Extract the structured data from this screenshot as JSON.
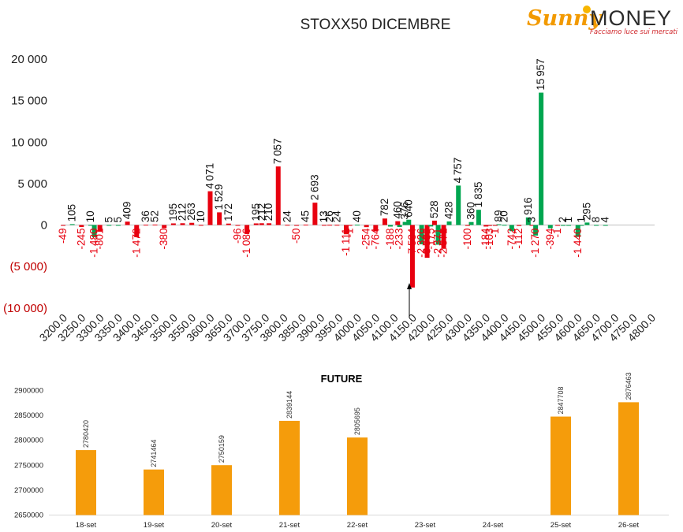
{
  "logo": {
    "sunny": "Sunny",
    "money": "MONEY",
    "tagline": "Facciamo luce sui mercati"
  },
  "chart_data": [
    {
      "type": "bar",
      "title": "STOXX50 DICEMBRE",
      "ylim": [
        -10000,
        20000
      ],
      "yticks": [
        20000,
        15000,
        10000,
        5000,
        0,
        -5000,
        -10000
      ],
      "ytick_labels": [
        "20 000",
        "15 000",
        "10 000",
        "5 000",
        "0",
        "(5 000)",
        "(10 000)"
      ],
      "categories": [
        "3200.0",
        "3250.0",
        "3300.0",
        "3350.0",
        "3400.0",
        "3450.0",
        "3500.0",
        "3550.0",
        "3600.0",
        "3650.0",
        "3700.0",
        "3750.0",
        "3800.0",
        "3850.0",
        "3900.0",
        "3950.0",
        "4000.0",
        "4050.0",
        "4100.0",
        "4150.0",
        "4200.0",
        "4250.0",
        "4300.0",
        "4350.0",
        "4400.0",
        "4450.0",
        "4500.0",
        "4550.0",
        "4600.0",
        "4650.0",
        "4700.0",
        "4750.0",
        "4800.0"
      ],
      "marker_label": "4150.0",
      "bars": [
        {
          "x": 3200,
          "v": -49,
          "c": "red"
        },
        {
          "x": 3225,
          "v": 105,
          "c": "green"
        },
        {
          "x": 3250,
          "v": -245,
          "c": "red"
        },
        {
          "x": 3275,
          "v": 10,
          "c": "green"
        },
        {
          "x": 3285,
          "v": -1480,
          "c": "green"
        },
        {
          "x": 3300,
          "v": -801,
          "c": "red"
        },
        {
          "x": 3325,
          "v": 5,
          "c": "green"
        },
        {
          "x": 3350,
          "v": 5,
          "c": "green"
        },
        {
          "x": 3375,
          "v": 409,
          "c": "red"
        },
        {
          "x": 3400,
          "v": -1472,
          "c": "red"
        },
        {
          "x": 3425,
          "v": 36,
          "c": "red"
        },
        {
          "x": 3450,
          "v": 52,
          "c": "red"
        },
        {
          "x": 3475,
          "v": -380,
          "c": "red"
        },
        {
          "x": 3500,
          "v": 195,
          "c": "red"
        },
        {
          "x": 3525,
          "v": 212,
          "c": "red"
        },
        {
          "x": 3550,
          "v": 263,
          "c": "red"
        },
        {
          "x": 3575,
          "v": 10,
          "c": "red"
        },
        {
          "x": 3600,
          "v": 4071,
          "c": "red"
        },
        {
          "x": 3625,
          "v": 1529,
          "c": "red"
        },
        {
          "x": 3650,
          "v": 172,
          "c": "red"
        },
        {
          "x": 3675,
          "v": -96,
          "c": "red"
        },
        {
          "x": 3700,
          "v": -1086,
          "c": "red"
        },
        {
          "x": 3725,
          "v": 195,
          "c": "red"
        },
        {
          "x": 3740,
          "v": 212,
          "c": "red"
        },
        {
          "x": 3760,
          "v": 210,
          "c": "red"
        },
        {
          "x": 3785,
          "v": 7057,
          "c": "red"
        },
        {
          "x": 3810,
          "v": 24,
          "c": "red"
        },
        {
          "x": 3835,
          "v": -50,
          "c": "red"
        },
        {
          "x": 3860,
          "v": 45,
          "c": "red"
        },
        {
          "x": 3885,
          "v": 2693,
          "c": "red"
        },
        {
          "x": 3910,
          "v": 13,
          "c": "red"
        },
        {
          "x": 3925,
          "v": 26,
          "c": "red"
        },
        {
          "x": 3945,
          "v": 24,
          "c": "red"
        },
        {
          "x": 3970,
          "v": -1111,
          "c": "red"
        },
        {
          "x": 3980,
          "v": -1,
          "c": "red"
        },
        {
          "x": 4000,
          "v": 40,
          "c": "green"
        },
        {
          "x": 4025,
          "v": -254,
          "c": "red"
        },
        {
          "x": 4050,
          "v": -764,
          "c": "red"
        },
        {
          "x": 4075,
          "v": 782,
          "c": "red"
        },
        {
          "x": 4090,
          "v": -188,
          "c": "green"
        },
        {
          "x": 4110,
          "v": 460,
          "c": "red"
        },
        {
          "x": 4115,
          "v": -233,
          "c": "green"
        },
        {
          "x": 4130,
          "v": 376,
          "c": "green"
        },
        {
          "x": 4140,
          "v": 640,
          "c": "green"
        },
        {
          "x": 4150,
          "v": -7534,
          "c": "red"
        },
        {
          "x": 4175,
          "v": -2326,
          "c": "green"
        },
        {
          "x": 4190,
          "v": -3950,
          "c": "red"
        },
        {
          "x": 4200,
          "v": -175,
          "c": "green"
        },
        {
          "x": 4210,
          "v": 528,
          "c": "red"
        },
        {
          "x": 4220,
          "v": -2371,
          "c": "green"
        },
        {
          "x": 4235,
          "v": -2871,
          "c": "red"
        },
        {
          "x": 4250,
          "v": 428,
          "c": "green"
        },
        {
          "x": 4275,
          "v": 4757,
          "c": "green"
        },
        {
          "x": 4300,
          "v": -100,
          "c": "red"
        },
        {
          "x": 4310,
          "v": 360,
          "c": "green"
        },
        {
          "x": 4330,
          "v": 1835,
          "c": "green"
        },
        {
          "x": 4350,
          "v": -184,
          "c": "red"
        },
        {
          "x": 4360,
          "v": -103,
          "c": "red"
        },
        {
          "x": 4375,
          "v": -1,
          "c": "red"
        },
        {
          "x": 4385,
          "v": 89,
          "c": "green"
        },
        {
          "x": 4400,
          "v": 20,
          "c": "green"
        },
        {
          "x": 4420,
          "v": -742,
          "c": "green"
        },
        {
          "x": 4440,
          "v": -112,
          "c": "red"
        },
        {
          "x": 4465,
          "v": 916,
          "c": "green"
        },
        {
          "x": 4475,
          "v": 3,
          "c": "red"
        },
        {
          "x": 4485,
          "v": -1270,
          "c": "green"
        },
        {
          "x": 4500,
          "v": 15957,
          "c": "green"
        },
        {
          "x": 4525,
          "v": -394,
          "c": "green"
        },
        {
          "x": 4545,
          "v": -1,
          "c": "red"
        },
        {
          "x": 4560,
          "v": 2,
          "c": "green"
        },
        {
          "x": 4575,
          "v": 1,
          "c": "green"
        },
        {
          "x": 4600,
          "v": -1440,
          "c": "green"
        },
        {
          "x": 4610,
          "v": 1,
          "c": "green"
        },
        {
          "x": 4625,
          "v": 295,
          "c": "green"
        },
        {
          "x": 4650,
          "v": 8,
          "c": "green"
        },
        {
          "x": 4675,
          "v": 4,
          "c": "green"
        }
      ],
      "colors": {
        "red": "#e8000f",
        "green": "#00a650"
      }
    },
    {
      "type": "bar",
      "title": "FUTURE",
      "ylim": [
        2650000,
        2900000
      ],
      "yticks": [
        2650000,
        2700000,
        2750000,
        2800000,
        2850000,
        2900000
      ],
      "categories": [
        "18-set",
        "19-set",
        "20-set",
        "21-set",
        "22-set",
        "23-set",
        "24-set",
        "25-set",
        "26-set"
      ],
      "values": [
        2780420,
        2741464,
        2750159,
        2839144,
        2805695,
        null,
        null,
        2847708,
        2876463
      ],
      "colors": {
        "bar": "#f59c0b"
      }
    }
  ]
}
